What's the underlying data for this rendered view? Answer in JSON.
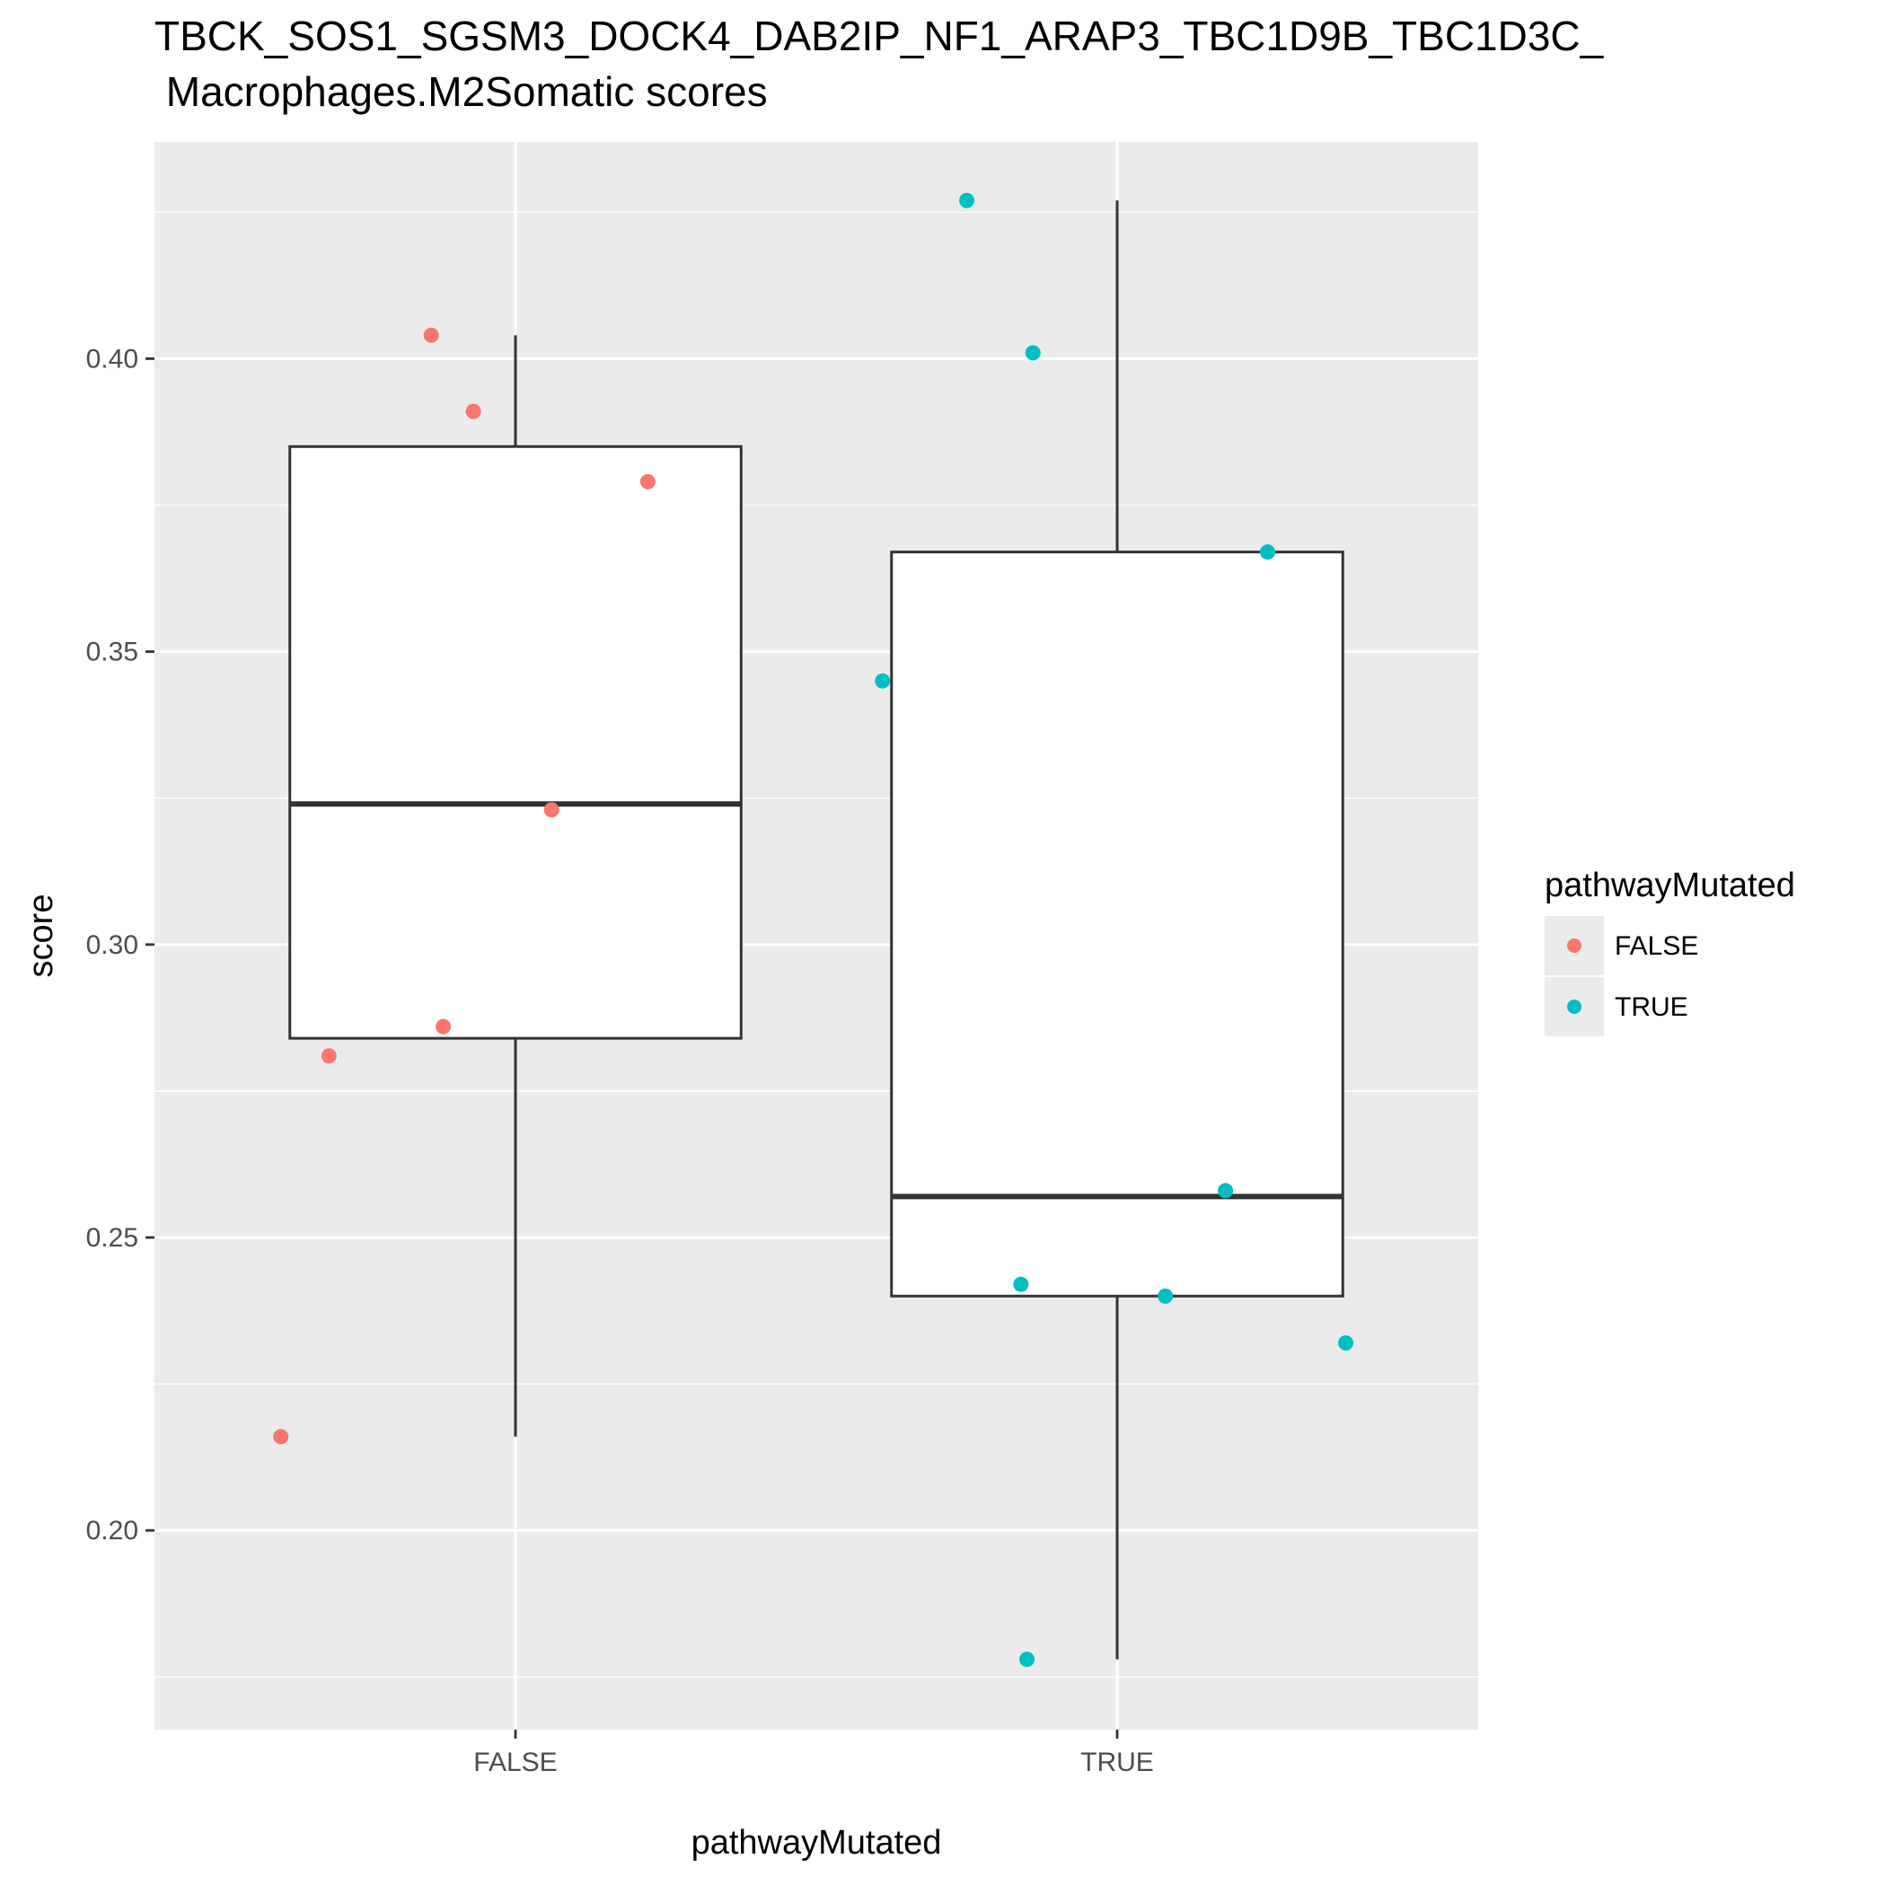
{
  "chart_data": {
    "type": "box",
    "title": "TBCK_SOS1_SGSM3_DOCK4_DAB2IP_NF1_ARAP3_TBC1D9B_TBC1D3C_",
    "subtitle": " Macrophages.M2Somatic scores",
    "xlabel": "pathwayMutated",
    "ylabel": "score",
    "categories": [
      "FALSE",
      "TRUE"
    ],
    "ylim": [
      0.166,
      0.437
    ],
    "yticks": [
      0.2,
      0.25,
      0.3,
      0.35,
      0.4
    ],
    "ytick_labels": [
      "0.20",
      "0.25",
      "0.30",
      "0.35",
      "0.40"
    ],
    "grid": true,
    "legend": {
      "title": "pathwayMutated",
      "placement": "right",
      "entries": [
        {
          "label": "FALSE",
          "color": "#F8766D"
        },
        {
          "label": "TRUE",
          "color": "#00BFC4"
        }
      ]
    },
    "boxes": [
      {
        "category": "FALSE",
        "whisker_low": 0.216,
        "q1": 0.284,
        "median": 0.324,
        "q3": 0.385,
        "whisker_high": 0.404
      },
      {
        "category": "TRUE",
        "whisker_low": 0.178,
        "q1": 0.24,
        "median": 0.257,
        "q3": 0.367,
        "whisker_high": 0.427
      }
    ],
    "series": [
      {
        "name": "FALSE",
        "color": "#F8766D",
        "category": "FALSE",
        "points": [
          {
            "jitter": -0.39,
            "y": 0.404
          },
          {
            "jitter": -0.07,
            "y": 0.404
          },
          {
            "jitter": -0.07,
            "y": 0.404
          }
        ]
      }
    ]
  }
}
